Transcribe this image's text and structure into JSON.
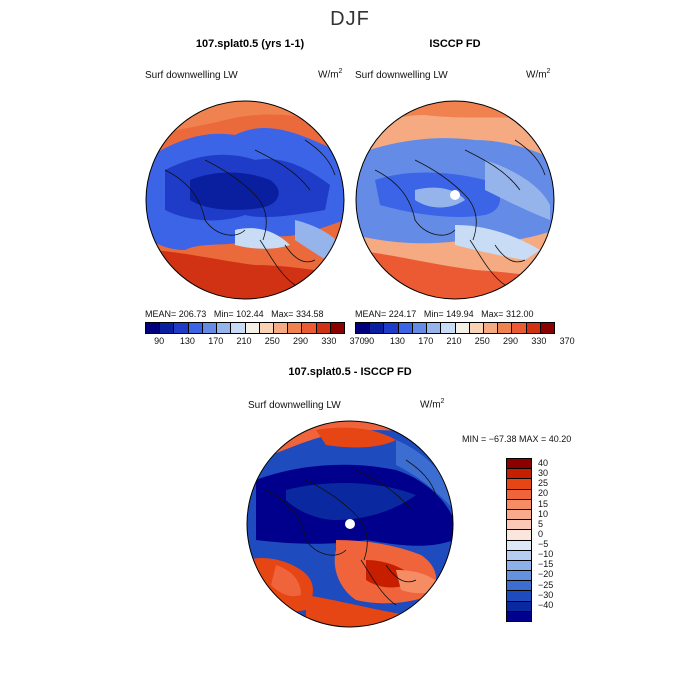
{
  "season": "DJF",
  "panels": [
    {
      "title": "107.splat0.5 (yrs 1-1)",
      "variable": "Surf downwelling LW",
      "unit": "W/m",
      "unit_exp": "2",
      "mean_label": "MEAN=",
      "mean": "206.73",
      "min_label": "Min=",
      "min": "102.44",
      "max_label": "Max=",
      "max": "334.58"
    },
    {
      "title": "ISCCP FD",
      "variable": "Surf downwelling LW",
      "unit": "W/m",
      "unit_exp": "2",
      "mean_label": "MEAN=",
      "mean": "224.17",
      "min_label": "Min=",
      "min": "149.94",
      "max_label": "Max=",
      "max": "312.00"
    }
  ],
  "abs_colorbar": {
    "colors": [
      "#00007f",
      "#0a1ea0",
      "#1e3cc8",
      "#3c64e6",
      "#648ce6",
      "#96b4ec",
      "#c8dcf5",
      "#f5f0e6",
      "#fad2b4",
      "#f5aa82",
      "#f08250",
      "#eb5a32",
      "#d23214",
      "#8c0000"
    ],
    "ticks": [
      "90",
      "130",
      "170",
      "210",
      "250",
      "290",
      "330",
      "370"
    ]
  },
  "diff": {
    "title": "107.splat0.5 - ISCCP FD",
    "variable": "Surf downwelling LW",
    "unit": "W/m",
    "unit_exp": "2",
    "minmax_text": "MIN = −67.38 MAX =  40.20"
  },
  "diff_colorbar": {
    "colors": [
      "#8c0000",
      "#c81e00",
      "#e64614",
      "#f0643c",
      "#f58c64",
      "#faaa8c",
      "#fac8b4",
      "#fae6dc",
      "#dce8f8",
      "#b4cdf0",
      "#8cb0e8",
      "#6490e0",
      "#3c6ed2",
      "#1e4bbe",
      "#0a28a0",
      "#00008c"
    ],
    "ticks": [
      "40",
      "30",
      "25",
      "20",
      "15",
      "10",
      "5",
      "0",
      "−5",
      "−10",
      "−15",
      "−20",
      "−25",
      "−30",
      "−40"
    ]
  }
}
